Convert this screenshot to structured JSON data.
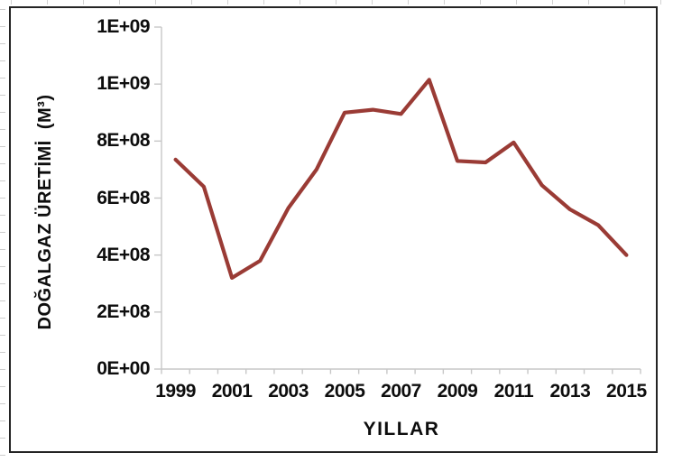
{
  "chart_data": {
    "type": "line",
    "title": "",
    "xlabel": "YILLAR",
    "ylabel": "DOĞALGAZ ÜRETİMİ  (M³)",
    "x": [
      1999,
      2000,
      2001,
      2002,
      2003,
      2004,
      2005,
      2006,
      2007,
      2008,
      2009,
      2010,
      2011,
      2012,
      2013,
      2014,
      2015
    ],
    "values": [
      735000000,
      640000000,
      320000000,
      380000000,
      565000000,
      700000000,
      900000000,
      910000000,
      895000000,
      1015000000,
      730000000,
      725000000,
      795000000,
      645000000,
      560000000,
      505000000,
      400000000
    ],
    "ylim": [
      0,
      1200000000
    ],
    "y_tick_interval": 200000000,
    "y_tick_labels": [
      "0E+00",
      "2E+08",
      "4E+08",
      "6E+08",
      "8E+08",
      "1E+09",
      "1E+09"
    ],
    "x_tick_labels": [
      "1999",
      "2001",
      "2003",
      "2005",
      "2007",
      "2009",
      "2011",
      "2013",
      "2015"
    ],
    "grid": false,
    "legend": "none"
  },
  "colors": {
    "series_line": "#9A3B35",
    "axis_line": "#C7C7C7",
    "chart_border": "#242424",
    "label_text": "#0d0d0d",
    "worksheet_gridline": "#d2d2d2"
  }
}
